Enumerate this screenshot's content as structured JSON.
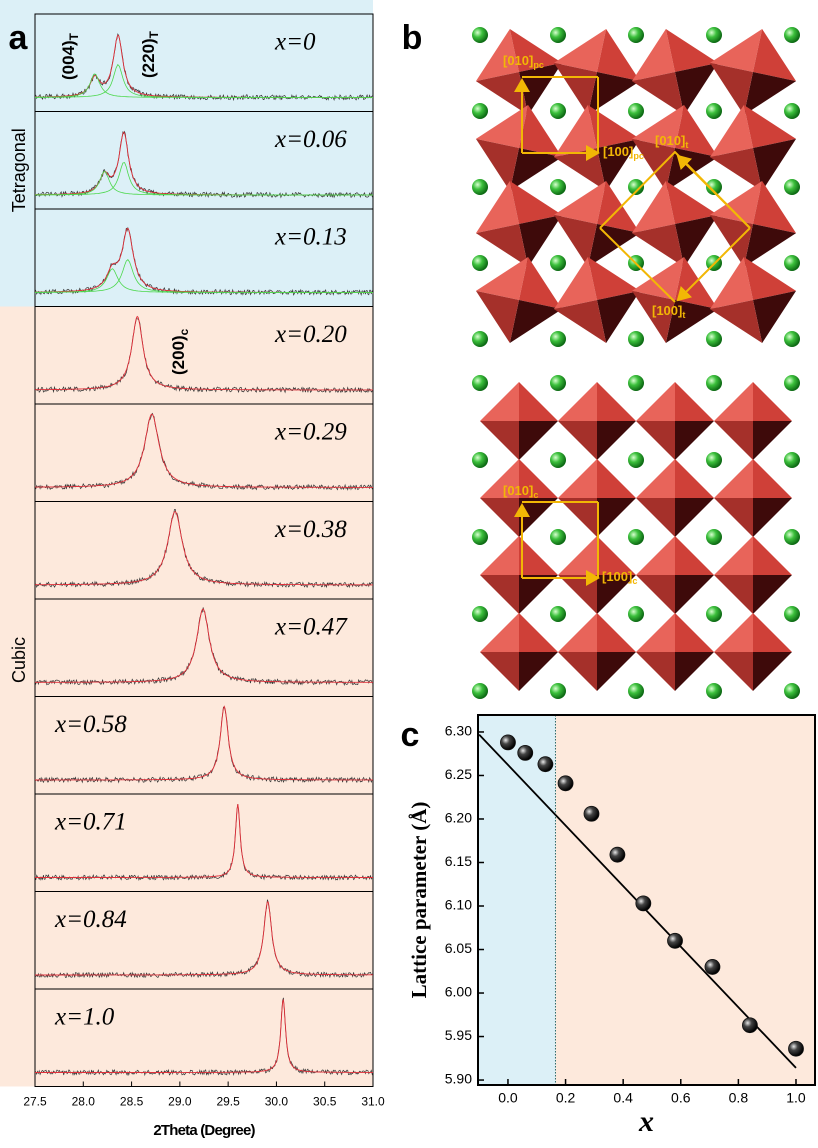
{
  "chart_data": [
    {
      "type": "stack",
      "panel_label": "a",
      "xlabel": "2Theta (Degree)",
      "xlim": [
        27.5,
        31.0
      ],
      "xticks": [
        27.5,
        {
          "value": 28.0,
          "label": "28.0"
        },
        28.5,
        {
          "value": 29.0,
          "label": "29.0"
        },
        29.5,
        {
          "value": 30.0,
          "label": "30.0"
        },
        30.5,
        {
          "value": 31.0,
          "label": "31.0"
        }
      ],
      "phases": [
        "Tetragonal",
        "Cubic"
      ],
      "annotations": [
        {
          "text": "(004)",
          "sub": "T"
        },
        {
          "text": "(220)",
          "sub": "T"
        },
        {
          "text": "(200)",
          "sub": "c"
        }
      ],
      "patterns": [
        {
          "label": "x=0",
          "peaks": [
            28.12,
            28.36
          ]
        },
        {
          "label": "x=0.06",
          "peaks": [
            28.22,
            28.42
          ]
        },
        {
          "label": "x=0.13",
          "peaks": [
            28.3,
            28.46
          ]
        },
        {
          "label": "x=0.20",
          "peaks": [
            28.56
          ]
        },
        {
          "label": "x=0.29",
          "peaks": [
            28.71
          ]
        },
        {
          "label": "x=0.38",
          "peaks": [
            28.95
          ]
        },
        {
          "label": "x=0.47",
          "peaks": [
            29.24
          ]
        },
        {
          "label": "x=0.58",
          "peaks": [
            29.46
          ]
        },
        {
          "label": "x=0.71",
          "peaks": [
            29.6
          ]
        },
        {
          "label": "x=0.84",
          "peaks": [
            29.91
          ]
        },
        {
          "label": "x=1.0",
          "peaks": [
            30.07
          ]
        }
      ]
    },
    {
      "type": "scatter",
      "panel_label": "c",
      "xlabel": "x",
      "ylabel": "Lattice parameter (Å)",
      "xlim": [
        -0.104,
        1.066
      ],
      "ylim": [
        5.8943,
        6.3195
      ],
      "xticks": [
        {
          "value": 0,
          "label": "0.0"
        },
        0.2,
        0.4,
        0.6,
        0.8,
        {
          "value": 1,
          "label": "1.0"
        }
      ],
      "yticks": [
        {
          "value": 5.9,
          "label": "5.90"
        },
        5.95,
        {
          "value": 6.0,
          "label": "6.00"
        },
        6.05,
        {
          "value": 6.1,
          "label": "6.10"
        },
        6.15,
        {
          "value": 6.2,
          "label": "6.20"
        },
        6.25,
        {
          "value": 6.3,
          "label": "6.30"
        }
      ],
      "region_split": 0.165,
      "region_colors": [
        "#dcf0f7",
        "#fde9dc"
      ],
      "series": [
        {
          "color": "#111111",
          "x": [
            0,
            0.06,
            0.13,
            0.2,
            0.29,
            0.38,
            0.47,
            0.58,
            0.71,
            0.84,
            1.0
          ],
          "values": [
            6.288,
            6.276,
            6.263,
            6.241,
            6.206,
            6.159,
            6.103,
            6.06,
            6.03,
            5.963,
            5.936
          ]
        }
      ],
      "fit": {
        "color": "#000000",
        "x": [
          -0.1,
          1.0
        ],
        "values": [
          6.297,
          5.914
        ]
      }
    }
  ],
  "structure": {
    "panel_label": "b",
    "labels": [
      {
        "text": "[010]",
        "sub": "pc"
      },
      {
        "text": "[100]",
        "sub": "pc"
      },
      {
        "text": "[010]",
        "sub": "t"
      },
      {
        "text": "[100]",
        "sub": "t"
      },
      {
        "text": "[010]",
        "sub": "c"
      },
      {
        "text": "[100]",
        "sub": "c"
      }
    ]
  }
}
